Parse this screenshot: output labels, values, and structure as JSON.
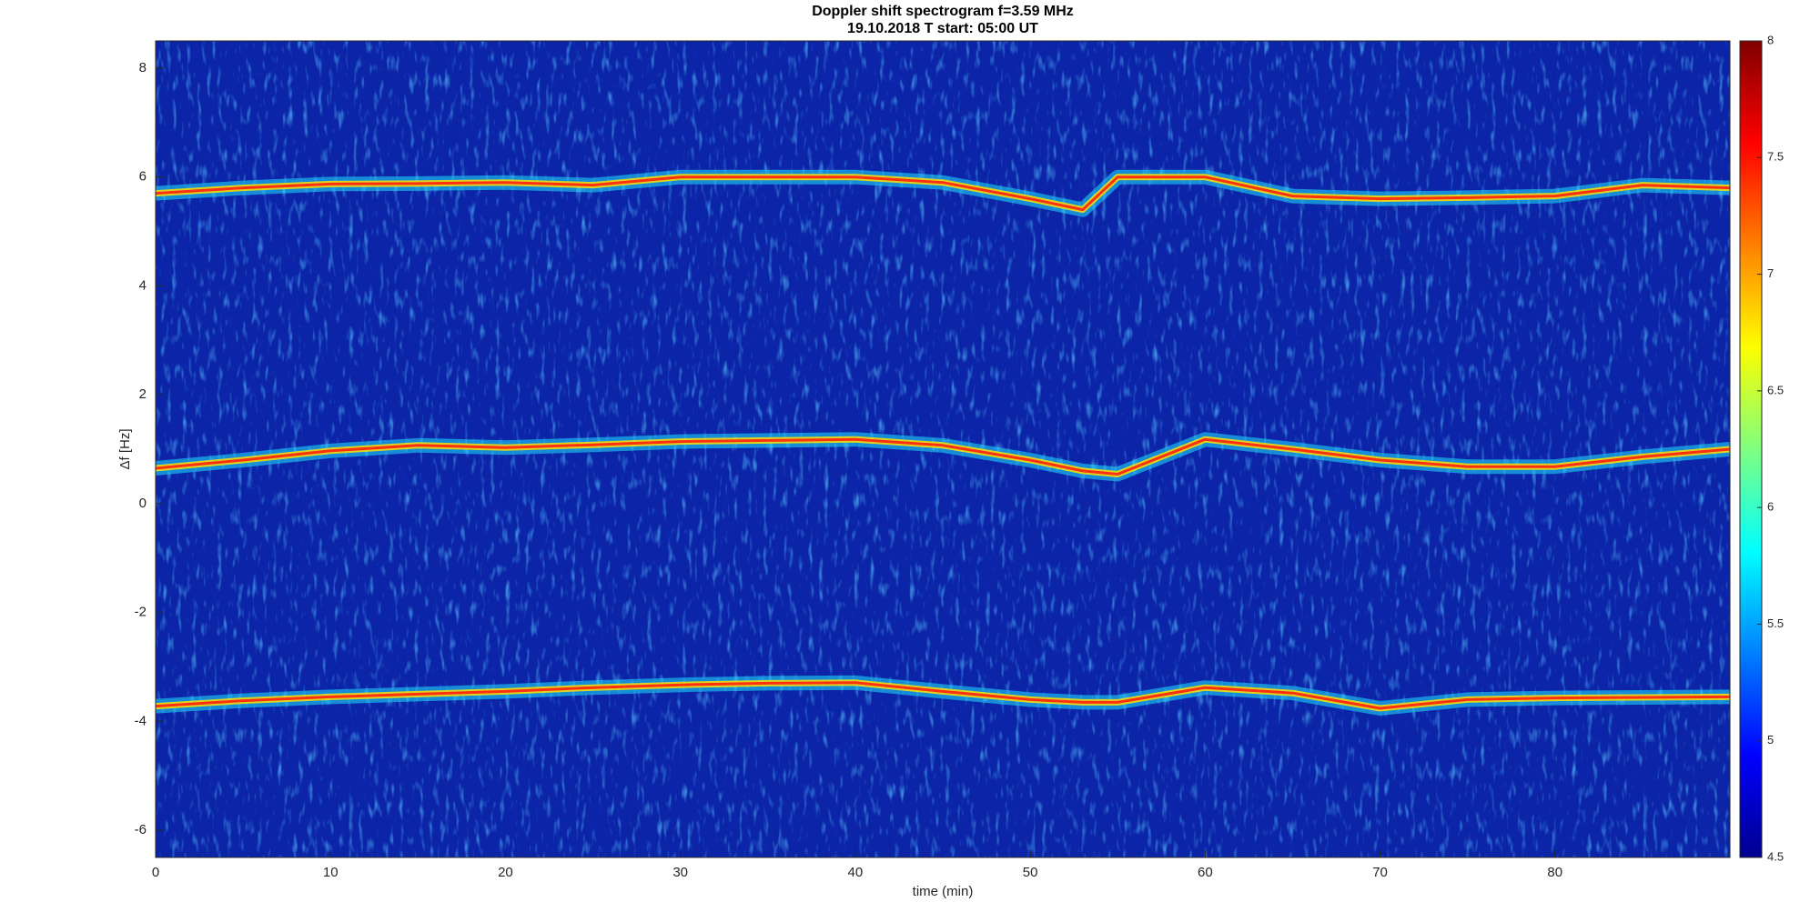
{
  "chart_data": {
    "type": "spectrogram",
    "title": "Doppler shift spectrogram f=3.59 MHz",
    "subtitle": "19.10.2018   T start: 05:00 UT",
    "xlabel": "time (min)",
    "ylabel": "Δf [Hz]",
    "xlim": [
      0,
      90
    ],
    "xticks": [
      0,
      10,
      20,
      30,
      40,
      50,
      60,
      70,
      80
    ],
    "ylim": [
      -6.5,
      8.5
    ],
    "yticks": [
      -6,
      -4,
      -2,
      0,
      2,
      4,
      6,
      8
    ],
    "colormap": "jet",
    "clim": [
      4.5,
      8
    ],
    "cticks": [
      4.5,
      5,
      5.5,
      6,
      6.5,
      7,
      7.5,
      8
    ],
    "background_color": "#0b24a8",
    "x": [
      0,
      5,
      10,
      15,
      20,
      25,
      30,
      35,
      40,
      45,
      50,
      53,
      55,
      60,
      65,
      70,
      75,
      80,
      85,
      90
    ],
    "series": [
      {
        "color": "#ff3010",
        "values": [
          5.7,
          5.8,
          5.87,
          5.88,
          5.9,
          5.85,
          6.0,
          6.0,
          6.0,
          5.9,
          5.6,
          5.4,
          6.0,
          6.0,
          5.65,
          5.6,
          5.62,
          5.65,
          5.85,
          5.8
        ]
      },
      {
        "color": "#ff3010",
        "values": [
          0.65,
          0.8,
          0.97,
          1.07,
          1.03,
          1.08,
          1.14,
          1.16,
          1.18,
          1.07,
          0.8,
          0.6,
          0.54,
          1.18,
          1.0,
          0.8,
          0.68,
          0.68,
          0.86,
          1.0
        ]
      },
      {
        "color": "#ff3010",
        "values": [
          -3.72,
          -3.62,
          -3.55,
          -3.5,
          -3.45,
          -3.38,
          -3.33,
          -3.3,
          -3.29,
          -3.45,
          -3.6,
          -3.65,
          -3.65,
          -3.38,
          -3.48,
          -3.76,
          -3.6,
          -3.57,
          -3.56,
          -3.55
        ]
      }
    ]
  }
}
